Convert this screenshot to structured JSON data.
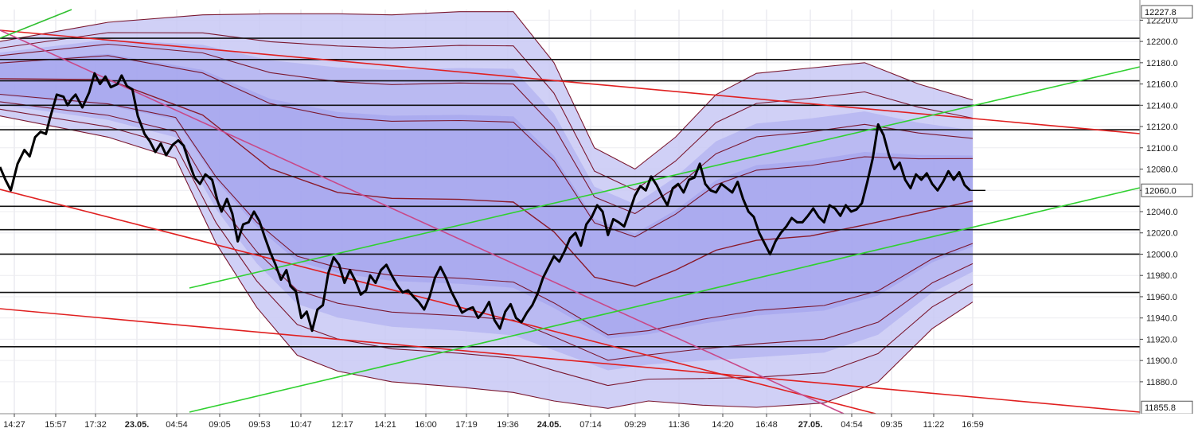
{
  "chart_data": {
    "type": "line",
    "y_range": [
      11850,
      12230
    ],
    "y_ticks": [
      "12220.0",
      "12200.0",
      "12180.0",
      "12160.0",
      "12140.0",
      "12120.0",
      "12100.0",
      "12080.0",
      "12060.0",
      "12040.0",
      "12020.0",
      "12000.0",
      "11980.0",
      "11960.0",
      "11940.0",
      "11920.0",
      "11900.0",
      "11880.0"
    ],
    "y_tick_values": [
      12220,
      12200,
      12180,
      12160,
      12140,
      12120,
      12100,
      12080,
      12060,
      12040,
      12020,
      12000,
      11980,
      11960,
      11940,
      11920,
      11900,
      11880
    ],
    "x_ticks": [
      "14:27",
      "15:57",
      "17:32",
      "23.05.",
      "04:54",
      "09:05",
      "09:53",
      "10:47",
      "12:17",
      "14:21",
      "16:00",
      "17:19",
      "19:36",
      "24.05.",
      "07:14",
      "09:29",
      "11:36",
      "14:20",
      "16:48",
      "27.05.",
      "04:54",
      "09:35",
      "11:22",
      "16:59"
    ],
    "x_ticks_bold": [
      false,
      false,
      false,
      true,
      false,
      false,
      false,
      false,
      false,
      false,
      false,
      false,
      false,
      true,
      false,
      false,
      false,
      false,
      false,
      true,
      false,
      false,
      false,
      false
    ],
    "boxed_labels": {
      "top": "12227.8",
      "last_price": "12060.0",
      "bottom": "11855.8"
    },
    "horizontal_levels": [
      12203,
      12183,
      12163,
      12140,
      12117,
      12073,
      12045,
      12023,
      12000,
      11964,
      11913
    ],
    "price_path": [
      [
        0,
        12082
      ],
      [
        0.4,
        12070
      ],
      [
        0.8,
        12060
      ],
      [
        1.3,
        12085
      ],
      [
        1.8,
        12098
      ],
      [
        2.2,
        12092
      ],
      [
        2.6,
        12110
      ],
      [
        3.0,
        12115
      ],
      [
        3.4,
        12113
      ],
      [
        3.7,
        12128
      ],
      [
        4.2,
        12150
      ],
      [
        4.7,
        12148
      ],
      [
        5.0,
        12140
      ],
      [
        5.3,
        12146
      ],
      [
        5.6,
        12150
      ],
      [
        6.1,
        12138
      ],
      [
        6.6,
        12152
      ],
      [
        7.0,
        12170
      ],
      [
        7.4,
        12160
      ],
      [
        7.8,
        12167
      ],
      [
        8.2,
        12157
      ],
      [
        8.7,
        12160
      ],
      [
        9.0,
        12168
      ],
      [
        9.4,
        12158
      ],
      [
        9.8,
        12155
      ],
      [
        10.2,
        12130
      ],
      [
        10.7,
        12113
      ],
      [
        11.1,
        12106
      ],
      [
        11.5,
        12096
      ],
      [
        11.9,
        12104
      ],
      [
        12.3,
        12093
      ],
      [
        12.8,
        12103
      ],
      [
        13.2,
        12107
      ],
      [
        13.6,
        12102
      ],
      [
        14.0,
        12086
      ],
      [
        14.4,
        12072
      ],
      [
        14.8,
        12066
      ],
      [
        15.2,
        12075
      ],
      [
        15.7,
        12070
      ],
      [
        16.1,
        12050
      ],
      [
        16.4,
        12040
      ],
      [
        16.8,
        12052
      ],
      [
        17.2,
        12038
      ],
      [
        17.6,
        12012
      ],
      [
        18.0,
        12028
      ],
      [
        18.4,
        12030
      ],
      [
        18.8,
        12040
      ],
      [
        19.2,
        12031
      ],
      [
        19.6,
        12016
      ],
      [
        20.0,
        12002
      ],
      [
        20.4,
        11990
      ],
      [
        20.8,
        11976
      ],
      [
        21.2,
        11985
      ],
      [
        21.5,
        11970
      ],
      [
        21.9,
        11965
      ],
      [
        22.3,
        11940
      ],
      [
        22.7,
        11946
      ],
      [
        23.1,
        11928
      ],
      [
        23.5,
        11948
      ],
      [
        23.9,
        11952
      ],
      [
        24.3,
        11982
      ],
      [
        24.7,
        11997
      ],
      [
        25.1,
        11990
      ],
      [
        25.5,
        11973
      ],
      [
        25.9,
        11985
      ],
      [
        26.3,
        11975
      ],
      [
        26.7,
        11962
      ],
      [
        27.1,
        11966
      ],
      [
        27.4,
        11980
      ],
      [
        27.8,
        11973
      ],
      [
        28.2,
        11985
      ],
      [
        28.6,
        11990
      ],
      [
        29.0,
        11980
      ],
      [
        29.4,
        11971
      ],
      [
        29.8,
        11964
      ],
      [
        30.2,
        11966
      ],
      [
        30.6,
        11960
      ],
      [
        31.0,
        11955
      ],
      [
        31.4,
        11948
      ],
      [
        31.8,
        11960
      ],
      [
        32.2,
        11978
      ],
      [
        32.6,
        11988
      ],
      [
        33.0,
        11978
      ],
      [
        33.4,
        11965
      ],
      [
        33.8,
        11955
      ],
      [
        34.2,
        11945
      ],
      [
        34.6,
        11948
      ],
      [
        35.0,
        11950
      ],
      [
        35.4,
        11940
      ],
      [
        35.8,
        11946
      ],
      [
        36.2,
        11955
      ],
      [
        36.6,
        11938
      ],
      [
        37.0,
        11930
      ],
      [
        37.4,
        11946
      ],
      [
        37.8,
        11953
      ],
      [
        38.2,
        11940
      ],
      [
        38.6,
        11936
      ],
      [
        39.0,
        11945
      ],
      [
        39.4,
        11952
      ],
      [
        39.8,
        11963
      ],
      [
        40.2,
        11978
      ],
      [
        40.6,
        11988
      ],
      [
        41.0,
        11998
      ],
      [
        41.4,
        11993
      ],
      [
        41.8,
        12003
      ],
      [
        42.2,
        12015
      ],
      [
        42.6,
        12020
      ],
      [
        43.0,
        12008
      ],
      [
        43.4,
        12028
      ],
      [
        43.8,
        12035
      ],
      [
        44.2,
        12046
      ],
      [
        44.6,
        12040
      ],
      [
        45.0,
        12018
      ],
      [
        45.4,
        12033
      ],
      [
        45.8,
        12030
      ],
      [
        46.2,
        12026
      ],
      [
        46.6,
        12040
      ],
      [
        47.0,
        12055
      ],
      [
        47.4,
        12064
      ],
      [
        47.8,
        12060
      ],
      [
        48.2,
        12073
      ],
      [
        48.6,
        12065
      ],
      [
        49.0,
        12055
      ],
      [
        49.4,
        12046
      ],
      [
        49.8,
        12062
      ],
      [
        50.2,
        12066
      ],
      [
        50.6,
        12058
      ],
      [
        51.0,
        12070
      ],
      [
        51.4,
        12072
      ],
      [
        51.8,
        12085
      ],
      [
        52.2,
        12066
      ],
      [
        52.6,
        12060
      ],
      [
        53.0,
        12058
      ],
      [
        53.4,
        12066
      ],
      [
        53.8,
        12062
      ],
      [
        54.2,
        12058
      ],
      [
        54.6,
        12068
      ],
      [
        55.0,
        12052
      ],
      [
        55.4,
        12040
      ],
      [
        55.8,
        12035
      ],
      [
        56.2,
        12020
      ],
      [
        56.6,
        12010
      ],
      [
        57.0,
        12000
      ],
      [
        57.4,
        12012
      ],
      [
        57.8,
        12020
      ],
      [
        58.2,
        12026
      ],
      [
        58.6,
        12034
      ],
      [
        59.0,
        12030
      ],
      [
        59.4,
        12030
      ],
      [
        59.8,
        12036
      ],
      [
        60.2,
        12043
      ],
      [
        60.6,
        12035
      ],
      [
        61.0,
        12030
      ],
      [
        61.4,
        12046
      ],
      [
        61.8,
        12043
      ],
      [
        62.2,
        12036
      ],
      [
        62.6,
        12046
      ],
      [
        63.0,
        12040
      ],
      [
        63.4,
        12042
      ],
      [
        63.8,
        12048
      ],
      [
        64.2,
        12068
      ],
      [
        64.6,
        12090
      ],
      [
        65.0,
        12122
      ],
      [
        65.4,
        12112
      ],
      [
        65.8,
        12093
      ],
      [
        66.2,
        12080
      ],
      [
        66.6,
        12086
      ],
      [
        67.0,
        12070
      ],
      [
        67.4,
        12062
      ],
      [
        67.8,
        12075
      ],
      [
        68.2,
        12070
      ],
      [
        68.6,
        12076
      ],
      [
        69.0,
        12066
      ],
      [
        69.4,
        12060
      ],
      [
        69.8,
        12068
      ],
      [
        70.2,
        12078
      ],
      [
        70.6,
        12070
      ],
      [
        71.0,
        12077
      ],
      [
        71.4,
        12065
      ],
      [
        71.8,
        12060
      ]
    ],
    "band_outer_upper": [
      [
        0,
        12200
      ],
      [
        8,
        12218
      ],
      [
        15,
        12225
      ],
      [
        20,
        12226
      ],
      [
        25,
        12226
      ],
      [
        29,
        12225
      ],
      [
        34,
        12228
      ],
      [
        38,
        12228
      ],
      [
        41,
        12180
      ],
      [
        44,
        12100
      ],
      [
        47,
        12080
      ],
      [
        50,
        12110
      ],
      [
        53,
        12150
      ],
      [
        56,
        12170
      ],
      [
        60,
        12175
      ],
      [
        64,
        12180
      ],
      [
        68,
        12160
      ],
      [
        72,
        12145
      ]
    ],
    "band_outer_lower": [
      [
        0,
        12130
      ],
      [
        8,
        12110
      ],
      [
        13,
        12090
      ],
      [
        16,
        12010
      ],
      [
        19,
        11950
      ],
      [
        22,
        11905
      ],
      [
        25,
        11890
      ],
      [
        29,
        11880
      ],
      [
        34,
        11875
      ],
      [
        38,
        11870
      ],
      [
        41,
        11862
      ],
      [
        45,
        11855
      ],
      [
        48,
        11862
      ],
      [
        52,
        11858
      ],
      [
        56,
        11856
      ],
      [
        61,
        11860
      ],
      [
        65,
        11880
      ],
      [
        69,
        11930
      ],
      [
        72,
        11955
      ]
    ]
  }
}
